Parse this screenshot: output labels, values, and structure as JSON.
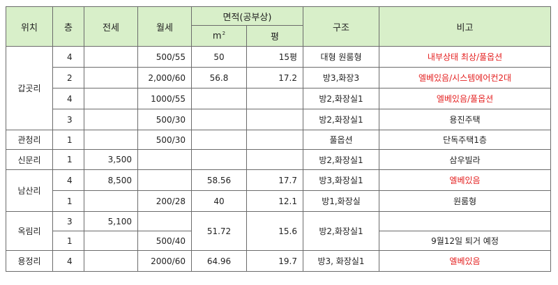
{
  "headers": {
    "location": "위치",
    "floor": "층",
    "jeonse": "전세",
    "monthly": "월세",
    "area": "면적(공부상)",
    "sqm_base": "m",
    "sqm_sup": "2",
    "pyeong": "평",
    "structure": "구조",
    "note": "비고"
  },
  "locations": {
    "gapgot": "갑곳리",
    "gwancheong": "관청리",
    "sinmun": "신문리",
    "namsan": "남산리",
    "ongnim": "옥림리",
    "yongjeong": "용정리"
  },
  "rows": [
    {
      "floor": "4",
      "jeonse": "",
      "monthly": "500/55",
      "sqm": "50",
      "pyeong": "15평",
      "structure": "대형 원룸형",
      "note": "내부상태 최상/풀옵션"
    },
    {
      "floor": "2",
      "jeonse": "",
      "monthly": "2,000/60",
      "sqm": "56.8",
      "pyeong": "17.2",
      "structure": "방3,화장3",
      "note": "엘베있음/시스템에어컨2대"
    },
    {
      "floor": "4",
      "jeonse": "",
      "monthly": "1000/55",
      "sqm": "",
      "pyeong": "",
      "structure": "방2,화장실1",
      "note": "엘베있음/풀옵션"
    },
    {
      "floor": "3",
      "jeonse": "",
      "monthly": "500/30",
      "sqm": "",
      "pyeong": "",
      "structure": "방2,화장실1",
      "note": "용진주택"
    },
    {
      "floor": "1",
      "jeonse": "",
      "monthly": "500/30",
      "sqm": "",
      "pyeong": "",
      "structure": "풀옵션",
      "note": "단독주택1층"
    },
    {
      "floor": "1",
      "jeonse": "3,500",
      "monthly": "",
      "sqm": "",
      "pyeong": "",
      "structure": "방2,화장실1",
      "note": "삼우빌라"
    },
    {
      "floor": "4",
      "jeonse": "8,500",
      "monthly": "",
      "sqm": "58.56",
      "pyeong": "17.7",
      "structure": "방3,화장실1",
      "note": "엘베있음"
    },
    {
      "floor": "1",
      "jeonse": "",
      "monthly": "200/28",
      "sqm": "40",
      "pyeong": "12.1",
      "structure": "방1,화장실",
      "note": "원룸형"
    },
    {
      "floor": "3",
      "jeonse": "5,100",
      "monthly": "",
      "sqm": "51.72",
      "pyeong": "15.6",
      "structure": "방2,화장실1",
      "note": ""
    },
    {
      "floor": "1",
      "jeonse": "",
      "monthly": "500/40",
      "sqm": "",
      "pyeong": "",
      "structure": "",
      "note": "9월12일 퇴거 예정"
    },
    {
      "floor": "4",
      "jeonse": "",
      "monthly": "2000/60",
      "sqm": "64.96",
      "pyeong": "19.7",
      "structure": "방3, 화장실1",
      "note": "엘베있음"
    }
  ],
  "colors": {
    "header_bg": "#d8efc9",
    "border": "#6b6b6b",
    "note_red": "#e41f1f"
  }
}
